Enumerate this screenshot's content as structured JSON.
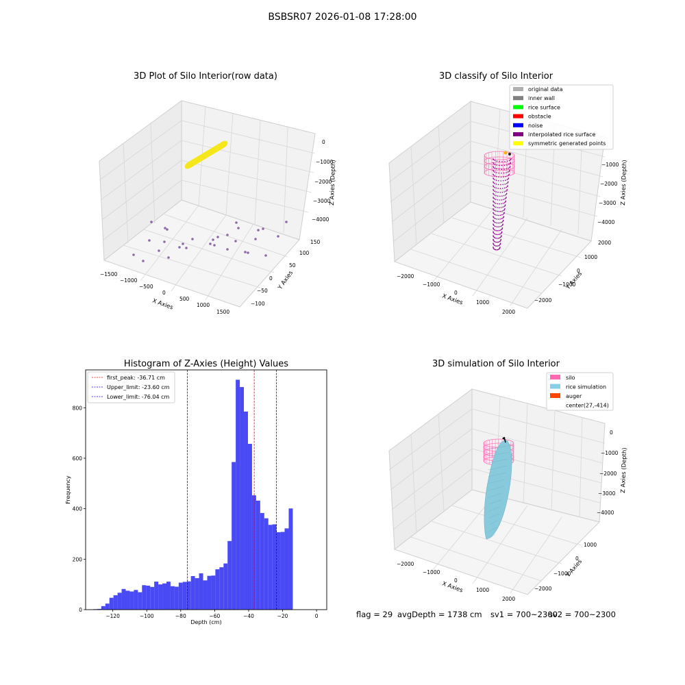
{
  "suptitle": "BSBSR07 2026-01-08 17:28:00",
  "footer": {
    "flag": "flag = 29",
    "avg": "avgDepth = 1738 cm",
    "sv1": "sv1 = 700~2300",
    "sv2": "sv2 = 700~2300"
  },
  "colors": {
    "raw_points": "#f5e71b",
    "raw_dots": "#7b4f9d",
    "silo": "#ff69b4",
    "rice": "#88c9dc",
    "interp": "#8b008b",
    "hist_bar": "#4a4af5",
    "peak_line": "#ff0000",
    "limit_line": "#0000ff"
  },
  "chart_data": [
    {
      "type": "scatter",
      "subtype": "3d",
      "title": "3D Plot of Silo Interior(row data)",
      "xlabel": "X Axies",
      "ylabel": "Y Axies",
      "zlabel": "Z Axies (Depth)",
      "xticks": [
        "−1500",
        "−1000",
        "−500",
        "0",
        "500",
        "1000",
        "1500"
      ],
      "yticks": [
        "−100",
        "−50",
        "0",
        "50",
        "100",
        "150"
      ],
      "zticks": [
        "0",
        "−1000",
        "−2000",
        "−3000",
        "−4000"
      ],
      "xlim": [
        -1600,
        1600
      ],
      "ylim": [
        -120,
        160
      ],
      "zlim": [
        -4500,
        0
      ]
    },
    {
      "type": "scatter",
      "subtype": "3d",
      "title": "3D classify of Silo Interior",
      "xlabel": "X Axies",
      "ylabel": "Y Axies",
      "zlabel": "Z Axies (Depth)",
      "xticks": [
        "−2000",
        "−1000",
        "0",
        "1000",
        "2000"
      ],
      "yticks": [
        "−2000",
        "−1000",
        "0",
        "1000",
        "2000"
      ],
      "zticks": [
        "−1000",
        "−2000",
        "−3000",
        "−4000"
      ],
      "legend_position": "upper right",
      "legend": [
        {
          "label": "original data",
          "color": "#b0b0b0"
        },
        {
          "label": "inner wall",
          "color": "#808080"
        },
        {
          "label": "rice surface",
          "color": "#00ff00"
        },
        {
          "label": "obstacle",
          "color": "#ff0000"
        },
        {
          "label": "noise",
          "color": "#0000ff"
        },
        {
          "label": "interpolated rice surface",
          "color": "#800080"
        },
        {
          "label": "symmetric generated points",
          "color": "#ffff00"
        }
      ]
    },
    {
      "type": "bar",
      "subtype": "histogram",
      "title": "Histogram of Z-Axies (Height) Values",
      "xlabel": "Depth (cm)",
      "ylabel": "Frequency",
      "xlim": [
        -136,
        6
      ],
      "ylim": [
        0,
        950
      ],
      "xticks": [
        -120,
        -100,
        -80,
        -60,
        -40,
        -20,
        0
      ],
      "yticks": [
        0,
        200,
        400,
        600,
        800
      ],
      "bin_start": -131.6,
      "bin_width": 2.4,
      "values": [
        2,
        3,
        14,
        24,
        47,
        57,
        67,
        82,
        75,
        72,
        78,
        69,
        97,
        95,
        90,
        111,
        100,
        104,
        111,
        93,
        91,
        107,
        110,
        112,
        133,
        125,
        144,
        116,
        134,
        135,
        160,
        168,
        183,
        272,
        585,
        911,
        882,
        785,
        657,
        453,
        432,
        383,
        362,
        336,
        338,
        307,
        308,
        322,
        401
      ],
      "vlines": [
        {
          "label": "first_peak: -36.71 cm",
          "x": -36.71,
          "color": "#ff0000"
        },
        {
          "label": "Upper_limit: -23.60 cm",
          "x": -23.6,
          "color": "#0000ff"
        },
        {
          "label": "Lower_limit: -76.04 cm",
          "x": -76.04,
          "color": "#0000ff"
        }
      ],
      "legend_position": "upper left"
    },
    {
      "type": "area",
      "subtype": "3d surface",
      "title": "3D simulation of Silo Interior",
      "xlabel": "X Axies",
      "ylabel": "Y Axies",
      "zlabel": "Z Axies (Depth)",
      "xticks": [
        "−2000",
        "−1000",
        "0",
        "1000",
        "2000"
      ],
      "yticks": [
        "−2000",
        "−1000",
        "0",
        "1000"
      ],
      "zticks": [
        "0",
        "−1000",
        "−2000",
        "−3000",
        "−4000"
      ],
      "legend_position": "upper right",
      "legend": [
        {
          "label": "silo",
          "color": "#ff69b4"
        },
        {
          "label": "rice simulation",
          "color": "#87ceeb"
        },
        {
          "label": "auger",
          "color": "#ff4500"
        },
        {
          "label": "center(27,-414)",
          "color": ""
        }
      ]
    }
  ]
}
